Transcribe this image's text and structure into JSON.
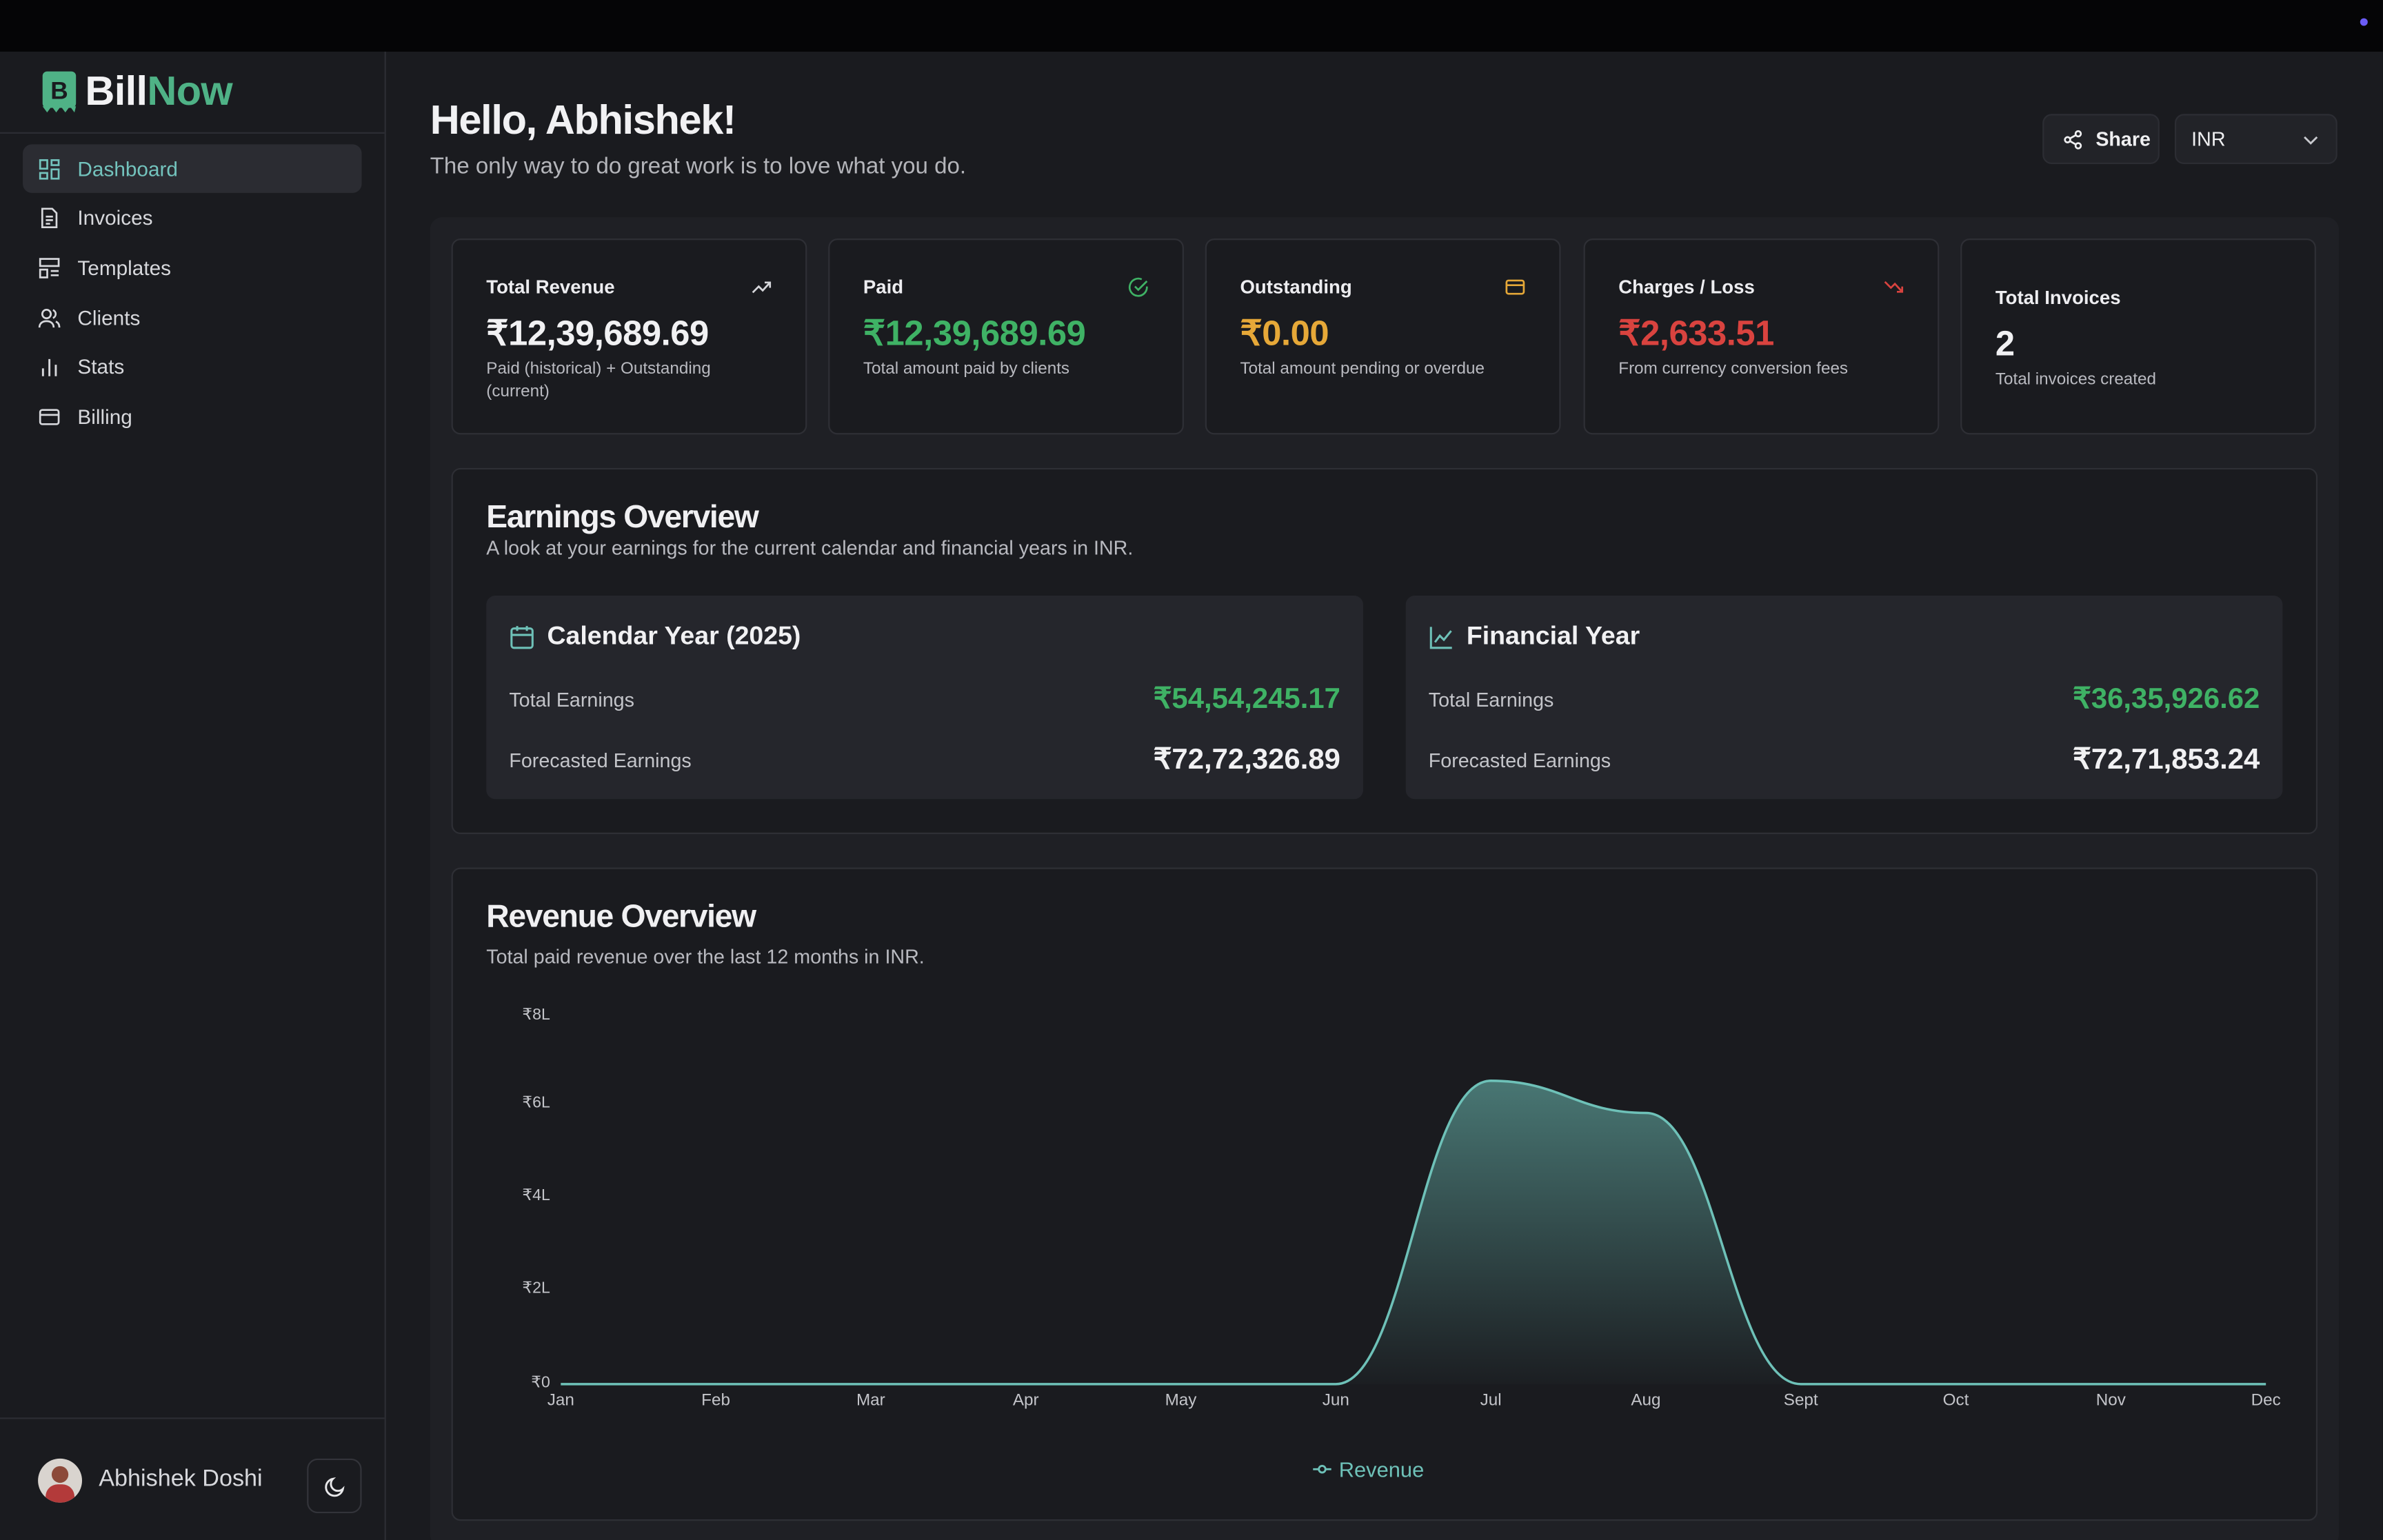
{
  "app": {
    "logo_part1": "Bill",
    "logo_part2": "Now",
    "accent": "#4fb286"
  },
  "sidebar": {
    "items": [
      {
        "label": "Dashboard",
        "icon": "dashboard-icon",
        "active": true
      },
      {
        "label": "Invoices",
        "icon": "invoice-icon"
      },
      {
        "label": "Templates",
        "icon": "templates-icon"
      },
      {
        "label": "Clients",
        "icon": "clients-icon"
      },
      {
        "label": "Stats",
        "icon": "stats-icon"
      },
      {
        "label": "Billing",
        "icon": "card-icon"
      }
    ],
    "user_name": "Abhishek Doshi"
  },
  "header": {
    "greeting": "Hello, Abhishek!",
    "quote": "The only way to do great work is to love what you do.",
    "share_label": "Share",
    "currency": "INR"
  },
  "stats": [
    {
      "title": "Total Revenue",
      "value": "₹12,39,689.69",
      "desc": "Paid (historical) + Outstanding (current)",
      "color": "#f1f1f3",
      "icon": "trending-up-icon"
    },
    {
      "title": "Paid",
      "value": "₹12,39,689.69",
      "desc": "Total amount paid by clients",
      "color": "#3fb265",
      "icon": "check-circle-icon"
    },
    {
      "title": "Outstanding",
      "value": "₹0.00",
      "desc": "Total amount pending or overdue",
      "color": "#e6a838",
      "icon": "card-icon"
    },
    {
      "title": "Charges / Loss",
      "value": "₹2,633.51",
      "desc": "From currency conversion fees",
      "color": "#d9433f",
      "icon": "trending-down-icon"
    },
    {
      "title": "Total Invoices",
      "value": "2",
      "desc": "Total invoices created",
      "color": "#f1f1f3"
    }
  ],
  "earnings": {
    "title": "Earnings Overview",
    "subtitle": "A look at your earnings for the current calendar and financial years in INR.",
    "calendar": {
      "title": "Calendar Year (2025)",
      "total_label": "Total Earnings",
      "total_value": "₹54,54,245.17",
      "forecast_label": "Forecasted Earnings",
      "forecast_value": "₹72,72,326.89"
    },
    "financial": {
      "title": "Financial Year",
      "total_label": "Total Earnings",
      "total_value": "₹36,35,926.62",
      "forecast_label": "Forecasted Earnings",
      "forecast_value": "₹72,71,853.24"
    }
  },
  "revenue": {
    "title": "Revenue Overview",
    "subtitle": "Total paid revenue over the last 12 months in INR."
  },
  "chart_data": {
    "type": "area",
    "categories": [
      "Jan",
      "Feb",
      "Mar",
      "Apr",
      "May",
      "Jun",
      "Jul",
      "Aug",
      "Sept",
      "Oct",
      "Nov",
      "Dec"
    ],
    "series": [
      {
        "name": "Revenue",
        "values": [
          0,
          0,
          0,
          0,
          0,
          0,
          660000,
          590000,
          0,
          0,
          0,
          0
        ]
      }
    ],
    "y_ticks": [
      "₹0",
      "₹2L",
      "₹4L",
      "₹6L",
      "₹8L"
    ],
    "ylim": [
      0,
      800000
    ],
    "legend": "bottom-center",
    "color": "#6ec1b8"
  }
}
